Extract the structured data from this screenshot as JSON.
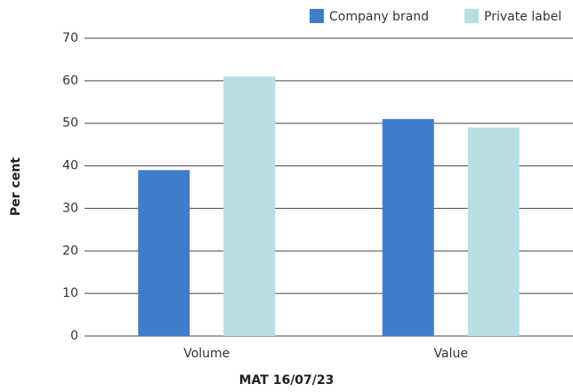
{
  "chart_data": {
    "type": "bar",
    "categories": [
      "Volume",
      "Value"
    ],
    "series": [
      {
        "name": "Company brand",
        "color": "#3f7dcc",
        "values": [
          39,
          51
        ]
      },
      {
        "name": "Private label",
        "color": "#b8dfe1",
        "values": [
          61,
          49
        ]
      }
    ],
    "ylim": [
      0,
      70
    ],
    "yticks": [
      0,
      10,
      20,
      30,
      40,
      50,
      60,
      70
    ],
    "grid": true,
    "y_label": "Per cent",
    "x_label": "MAT 16/07/23",
    "legend": "top-right"
  }
}
